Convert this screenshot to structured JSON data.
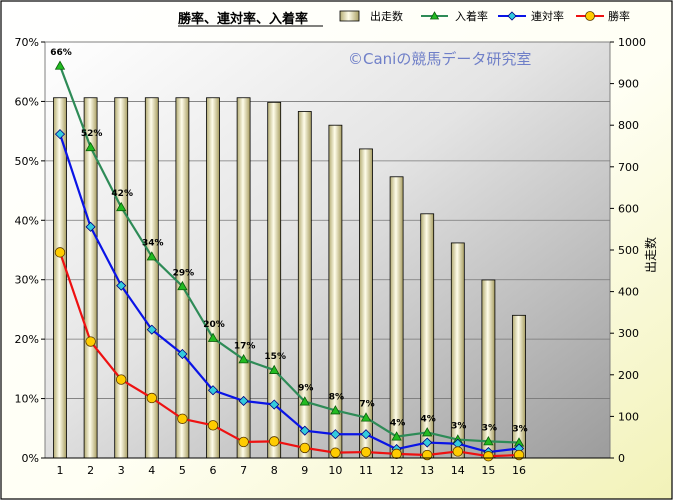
{
  "chart_data": {
    "type": "bar",
    "title": "勝率、連対率、入着率",
    "watermark": "©Caniの競馬データ研究室",
    "categories": [
      "1",
      "2",
      "3",
      "4",
      "5",
      "6",
      "7",
      "8",
      "9",
      "10",
      "11",
      "12",
      "13",
      "14",
      "15",
      "16"
    ],
    "y_left": {
      "ylim": [
        0,
        70
      ],
      "ticks": [
        "0%",
        "10%",
        "20%",
        "30%",
        "40%",
        "50%",
        "60%",
        "70%"
      ]
    },
    "y_right": {
      "label": "出走数",
      "ylim": [
        0,
        1000
      ],
      "ticks": [
        "0",
        "100",
        "200",
        "300",
        "400",
        "500",
        "600",
        "700",
        "800",
        "900",
        "1000"
      ]
    },
    "bars": {
      "name": "出走数",
      "axis": "right",
      "color": "#eeeab8",
      "values": [
        866,
        866,
        866,
        866,
        866,
        866,
        866,
        855,
        833,
        800,
        743,
        676,
        587,
        517,
        428,
        343
      ]
    },
    "series": [
      {
        "name": "入着率",
        "axis": "left",
        "color": "#2e8b57",
        "marker": "triangle",
        "values": [
          66,
          52.3,
          42.2,
          33.9,
          28.9,
          20.2,
          16.6,
          14.8,
          9.5,
          8.0,
          6.8,
          3.6,
          4.3,
          3.1,
          2.8,
          2.6
        ]
      },
      {
        "name": "連対率",
        "axis": "left",
        "color": "#0a14e6",
        "marker": "diamond",
        "values": [
          54.5,
          38.9,
          29.0,
          21.6,
          17.5,
          11.4,
          9.6,
          9.0,
          4.6,
          4.0,
          4.0,
          1.5,
          2.6,
          2.4,
          1.0,
          1.6
        ]
      },
      {
        "name": "勝率",
        "axis": "left",
        "color": "#ee1111",
        "marker": "circle",
        "values": [
          34.6,
          19.6,
          13.2,
          10.1,
          6.6,
          5.5,
          2.7,
          2.8,
          1.7,
          0.9,
          1.0,
          0.7,
          0.5,
          1.1,
          0.3,
          0.5
        ]
      }
    ],
    "data_labels": [
      "66%",
      "52%",
      "42%",
      "34%",
      "29%",
      "20%",
      "17%",
      "15%",
      "9%",
      "8%",
      "7%",
      "4%",
      "4%",
      "3%",
      "3%",
      "3%"
    ],
    "legend_position": "top-right",
    "grid": true
  }
}
